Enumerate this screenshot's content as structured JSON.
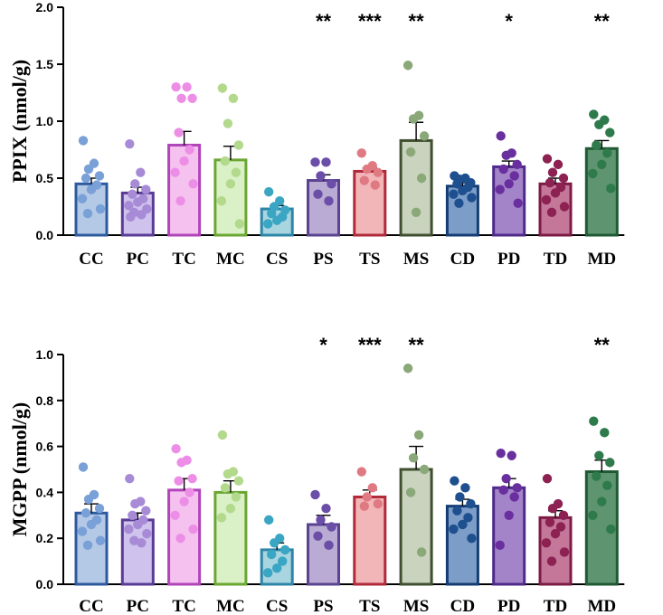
{
  "colors": {
    "fill": [
      "#b3c9e6",
      "#cfc2ec",
      "#f5c2ef",
      "#daf0c6",
      "#a8d5e0",
      "#b9abd3",
      "#f2b6b8",
      "#c9d3be",
      "#7c9dc7",
      "#a484c9",
      "#c47798",
      "#5f9471"
    ],
    "edge": [
      "#2d5a9e",
      "#5a3b96",
      "#b044b8",
      "#6aa632",
      "#2d86a8",
      "#5a4391",
      "#b02a3a",
      "#3f4f30",
      "#143d73",
      "#4e2a8a",
      "#7c1b45",
      "#1f5a35"
    ],
    "dot": [
      "#7aa0d8",
      "#a78bd6",
      "#ed8ee6",
      "#b2d98c",
      "#3aa6c4",
      "#6a4ea8",
      "#e07a82",
      "#8aa878",
      "#1e4f8f",
      "#6a2f9e",
      "#8c2152",
      "#2e7a4b"
    ]
  },
  "chart_data": [
    {
      "type": "bar",
      "id": "ppix",
      "ylabel": "PPIX (nmol/g)",
      "ylim": [
        0,
        2.0
      ],
      "yticks": [
        0.0,
        0.5,
        1.0,
        1.5,
        2.0
      ],
      "ytick_labels": [
        "0.0",
        "0.5",
        "1.0",
        "1.5",
        "2.0"
      ],
      "categories": [
        "CC",
        "PC",
        "TC",
        "MC",
        "CS",
        "PS",
        "TS",
        "MS",
        "CD",
        "PD",
        "TD",
        "MD"
      ],
      "values": [
        0.45,
        0.37,
        0.79,
        0.66,
        0.23,
        0.48,
        0.56,
        0.83,
        0.43,
        0.6,
        0.45,
        0.76
      ],
      "sem": [
        0.05,
        0.05,
        0.12,
        0.12,
        0.03,
        0.05,
        0.03,
        0.16,
        0.03,
        0.05,
        0.05,
        0.07
      ],
      "significance": [
        "",
        "",
        "",
        "",
        "",
        "**",
        "***",
        "**",
        "",
        "*",
        "",
        "**"
      ],
      "points": [
        [
          0.83,
          0.63,
          0.58,
          0.52,
          0.5,
          0.44,
          0.4,
          0.32,
          0.23,
          0.19
        ],
        [
          0.8,
          0.55,
          0.45,
          0.4,
          0.36,
          0.32,
          0.29,
          0.26,
          0.23,
          0.2,
          0.18,
          0.16
        ],
        [
          1.3,
          1.3,
          1.2,
          1.2,
          0.9,
          0.75,
          0.65,
          0.55,
          0.45,
          0.3
        ],
        [
          1.29,
          1.2,
          0.98,
          0.79,
          0.65,
          0.55,
          0.45,
          0.3,
          0.1
        ],
        [
          0.38,
          0.3,
          0.25,
          0.22,
          0.19,
          0.16,
          0.13,
          0.1
        ],
        [
          0.64,
          0.64,
          0.52,
          0.45,
          0.36,
          0.3
        ],
        [
          0.72,
          0.61,
          0.58,
          0.55,
          0.48,
          0.44
        ],
        [
          1.49,
          1.05,
          1.02,
          0.87,
          0.73,
          0.5,
          0.2
        ],
        [
          0.52,
          0.5,
          0.49,
          0.46,
          0.45,
          0.42,
          0.39,
          0.36,
          0.33,
          0.28
        ],
        [
          0.87,
          0.72,
          0.7,
          0.62,
          0.58,
          0.52,
          0.45,
          0.4,
          0.28
        ],
        [
          0.67,
          0.62,
          0.55,
          0.5,
          0.46,
          0.42,
          0.37,
          0.31,
          0.25,
          0.2
        ],
        [
          1.06,
          1.01,
          0.97,
          0.9,
          0.79,
          0.72,
          0.62,
          0.54,
          0.41
        ]
      ]
    },
    {
      "type": "bar",
      "id": "mgpp",
      "ylabel": "MGPP (nmol/g)",
      "ylim": [
        0,
        1.0
      ],
      "yticks": [
        0.0,
        0.2,
        0.4,
        0.6,
        0.8,
        1.0
      ],
      "ytick_labels": [
        "0.0",
        "0.2",
        "0.4",
        "0.6",
        "0.8",
        "1.0"
      ],
      "categories": [
        "CC",
        "PC",
        "TC",
        "MC",
        "CS",
        "PS",
        "TS",
        "MS",
        "CD",
        "PD",
        "TD",
        "MD"
      ],
      "values": [
        0.31,
        0.28,
        0.41,
        0.4,
        0.15,
        0.26,
        0.38,
        0.5,
        0.34,
        0.42,
        0.29,
        0.49
      ],
      "sem": [
        0.04,
        0.03,
        0.05,
        0.05,
        0.03,
        0.04,
        0.03,
        0.1,
        0.03,
        0.04,
        0.03,
        0.05
      ],
      "significance": [
        "",
        "",
        "",
        "",
        "",
        "*",
        "***",
        "**",
        "",
        "",
        "",
        "**"
      ],
      "points": [
        [
          0.51,
          0.39,
          0.37,
          0.33,
          0.31,
          0.28,
          0.26,
          0.23,
          0.19,
          0.17
        ],
        [
          0.46,
          0.36,
          0.35,
          0.32,
          0.3,
          0.28,
          0.26,
          0.24,
          0.22,
          0.19,
          0.18
        ],
        [
          0.59,
          0.54,
          0.53,
          0.46,
          0.45,
          0.4,
          0.36,
          0.3,
          0.24,
          0.2
        ],
        [
          0.65,
          0.49,
          0.48,
          0.45,
          0.42,
          0.38,
          0.33,
          0.29
        ],
        [
          0.28,
          0.2,
          0.18,
          0.15,
          0.13,
          0.1,
          0.07,
          0.05
        ],
        [
          0.39,
          0.33,
          0.28,
          0.25,
          0.21,
          0.17
        ],
        [
          0.49,
          0.42,
          0.38,
          0.35,
          0.34
        ],
        [
          0.94,
          0.65,
          0.55,
          0.5,
          0.4,
          0.14
        ],
        [
          0.45,
          0.42,
          0.38,
          0.35,
          0.32,
          0.29,
          0.26,
          0.24,
          0.2
        ],
        [
          0.57,
          0.56,
          0.46,
          0.42,
          0.41,
          0.38,
          0.3,
          0.17
        ],
        [
          0.46,
          0.35,
          0.33,
          0.3,
          0.27,
          0.25,
          0.22,
          0.18,
          0.14,
          0.1
        ],
        [
          0.71,
          0.66,
          0.56,
          0.53,
          0.47,
          0.43,
          0.36,
          0.3,
          0.24
        ]
      ]
    }
  ]
}
